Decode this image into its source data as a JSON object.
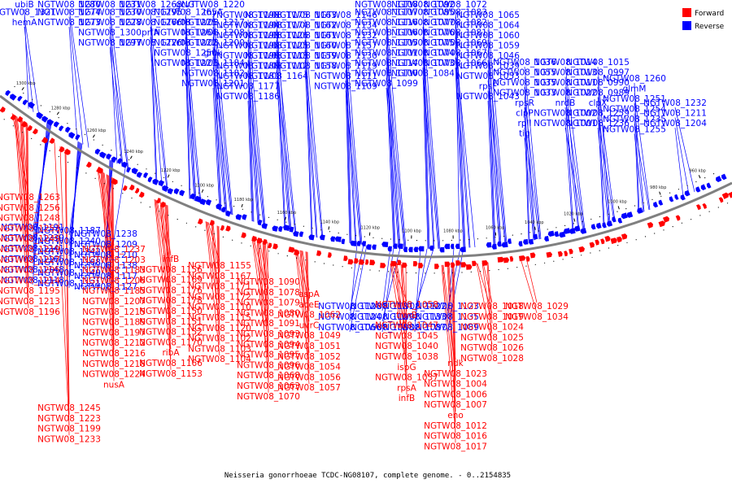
{
  "caption": "Neisseria gonorrhoeae TCDC-NG08107, complete genome. - 0..2154835",
  "legend": [
    {
      "label": "Forward",
      "color": "#ff0000"
    },
    {
      "label": "Reverse",
      "color": "#0000ff"
    }
  ],
  "colors": {
    "forward": "#ff0000",
    "reverse": "#0000ff",
    "backbone": "#808080"
  },
  "scale_labels": [
    "1300 kbp",
    "1280 kbp",
    "1260 kbp",
    "1240 kbp",
    "1220 kbp",
    "1200 kbp",
    "1180 kbp",
    "1160 kbp",
    "1140 kbp",
    "1120 kbp",
    "1100 kbp",
    "1080 kbp",
    "1060 kbp",
    "1040 kbp",
    "1020 kbp",
    "1000 kbp",
    "980 kbp",
    "960 kbp"
  ],
  "reverse_labels": [
    "ubiB",
    "NGTW08_1321",
    "hemA",
    "NGTW08_1280",
    "NGTW08_1274",
    "NGTW08_1273",
    "NGTW08_1231",
    "NGTW08_1230",
    "NGTW08_1228",
    "NGTW08_1300",
    "NGTW08_1297",
    "NGTW08_1268",
    "NGTW08_1295",
    "NGTW08_1266",
    "prfA",
    "NGTW08_1226",
    "gcvT",
    "NGTW08_1265",
    "NGTW08_1225",
    "NGTW08_1264",
    "NGTW08_1222",
    "NGTW08_1250",
    "NGTW08_1221",
    "NGTW08_1220",
    "thyA",
    "NGTW08_1217",
    "NGTW08_1208",
    "NGTW08_1200",
    "gmk",
    "NGTW08_1184",
    "NGTW08_1182",
    "NGTW08_1201",
    "NGTW08_1198",
    "NGTW08_1194",
    "NGTW08_1193",
    "NGTW08_1192",
    "NGTW08_1190",
    "NGTW08_1188",
    "NGTW08_1181",
    "NGTW08_1177",
    "NGTW08_1186",
    "NGTW08_1175",
    "NGTW08_1174",
    "NGTW08_1126",
    "NGTW08_1125",
    "NGTW08_1113",
    "NGTW08_1112",
    "NGTW08_1164",
    "NGTW08_1163",
    "NGTW08_1162",
    "NGTW08_1161",
    "NGTW08_1160",
    "NGTW08_1159",
    "NGTW08_1158",
    "NGTW08_1146",
    "NGTW08_1134",
    "NGTW08_1132",
    "NGTW08_1157",
    "NGTW08_1130",
    "NGTW08_1119",
    "NGTW08_1111",
    "NGTW08_1109",
    "NGTW08_1108",
    "NGTW08_1107",
    "NGTW08_1116",
    "NGTW08_1106",
    "NGTW08_1105",
    "NGTW08_1101",
    "NGTW08_1114",
    "NGTW08_1100",
    "NGTW08_1099",
    "NGTW08_1092",
    "NGTW08_1085",
    "NGTW08_1077",
    "NGTW08_1076",
    "NGTW08_1075",
    "NGTW08_1074",
    "NGTW08_1073",
    "NGTW08_1084",
    "NGTW08_1072",
    "NGTW08_1083",
    "NGTW08_1082",
    "NGTW08_1081",
    "NGTW08_1069",
    "NGTW08_1067",
    "NGTW08_1066",
    "NGTW08_1065",
    "NGTW08_1064",
    "NGTW08_1060",
    "NGTW08_1059",
    "NGTW08_1046",
    "NGTW08_1039",
    "NGTW08_1053",
    "rpsF",
    "NGTW08_1043",
    "NGTW08_1036",
    "NGTW08_1055",
    "NGTW08_1035",
    "NGTW08_1033",
    "rpsR",
    "clpP",
    "rplI",
    "tig",
    "NGTW08_1014",
    "NGTW08_1013",
    "NGTW08_1011",
    "NGTW08_1022",
    "nrdB",
    "NGTW08_1002",
    "NGTW08_1001",
    "NGTW08_1015",
    "NGTW08_0997",
    "NGTW08_0990",
    "NGTW08_0989",
    "clpX",
    "NGTW08_1259",
    "NGTW08_1236",
    "NGTW08_1260",
    "glmM",
    "NGTW08_1251",
    "NGTW08_1254",
    "NGTW08_1235",
    "NGTW08_1255",
    "NGTW08_1232",
    "NGTW08_1211",
    "NGTW08_1204",
    "NGTW08_1191",
    "NGTW08_1187",
    "NGTW08_1238",
    "NGTW08_1239",
    "NGTW08_1240",
    "NGTW08_1209",
    "NGTW08_1241",
    "NGTW08_1242",
    "NGTW08_1210",
    "NGTW08_1165",
    "NGTW08_1168",
    "NGTW08_1138",
    "NGTW08_1148",
    "NGTW08_1149",
    "NGTW08_1117",
    "NGTW08_1118",
    "NGTW08_1121",
    "NGTW08_1127",
    "NGTW08_1128",
    "NGTW08_1131",
    "NGTW08_1122",
    "NGTW08_1123",
    "NGTW08_1124",
    "NGTW08_1129",
    "NGTW08_1133",
    "NGTW08_1135",
    "NGTW08_1066",
    "NGTW08_1088",
    "NGTW08_1087",
    "NGTW08_1089"
  ],
  "forward_labels": [
    "NGTW08_1263",
    "NGTW08_1256",
    "NGTW08_1248",
    "NGTW08_1253",
    "NGTW08_1249",
    "NGTW08_1219",
    "NGTW08_1227",
    "NGTW08_1205",
    "NGTW08_1214",
    "NGTW08_1195",
    "NGTW08_1213",
    "NGTW08_1196",
    "NGTW08_1245",
    "NGTW08_1223",
    "NGTW08_1199",
    "NGTW08_1233",
    "NGTW08_1237",
    "NGTW08_1203",
    "NGTW08_1183",
    "NGTW08_1206",
    "NGTW08_1185",
    "NGTW08_1207",
    "NGTW08_1215",
    "NGTW08_1189",
    "NGTW08_1197",
    "NGTW08_1212",
    "NGTW08_1216",
    "NGTW08_1218",
    "NGTW08_1224",
    "nusA",
    "infB",
    "NGTW08_1156",
    "NGTW08_1169",
    "NGTW08_1176",
    "NGTW08_1178",
    "NGTW08_1150",
    "NGTW08_1151",
    "NGTW08_1152",
    "NGTW08_1170",
    "ribA",
    "NGTW08_1166",
    "NGTW08_1153",
    "NGTW08_1155",
    "NGTW08_1167",
    "NGTW08_1171",
    "NGTW08_1172",
    "NGTW08_1110",
    "NGTW08_1115",
    "NGTW08_1120",
    "NGTW08_1102",
    "NGTW08_1103",
    "NGTW08_1104",
    "NGTW08_1090",
    "NGTW08_1078",
    "NGTW08_1079",
    "NGTW08_1080",
    "NGTW08_1091",
    "NGTW08_1093",
    "NGTW08_1094",
    "NGTW08_1095",
    "NGTW08_1096",
    "NGTW08_1068",
    "NGTW08_1063",
    "NGTW08_1070",
    "aspA",
    "aceE",
    "NGTW08_1062",
    "uvrC",
    "NGTW08_1049",
    "NGTW08_1051",
    "NGTW08_1052",
    "NGTW08_1054",
    "NGTW08_1056",
    "NGTW08_1057",
    "NGTW08_1058",
    "trmB",
    "NGTW08_1047",
    "NGTW08_1045",
    "NGTW08_1040",
    "NGTW08_1038",
    "ispG",
    "NGTW08_1037",
    "rpsA",
    "infB",
    "ndk",
    "NGTW08_1023",
    "NGTW08_1004",
    "NGTW08_1006",
    "NGTW08_1007",
    "eno",
    "NGTW08_1012",
    "NGTW08_1016",
    "NGTW08_1017",
    "NGTW08_1018",
    "NGTW08_1019",
    "NGTW08_1024",
    "NGTW08_1025",
    "NGTW08_1026",
    "NGTW08_1028",
    "NGTW08_1029",
    "NGTW08_1034"
  ]
}
